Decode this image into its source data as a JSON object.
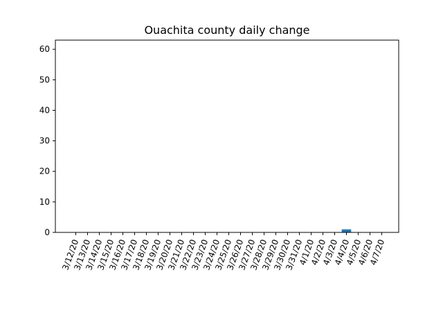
{
  "chart_data": {
    "type": "bar",
    "title": "Ouachita county daily change",
    "xlabel": "",
    "ylabel": "",
    "categories": [
      "3/12/20",
      "3/13/20",
      "3/14/20",
      "3/15/20",
      "3/16/20",
      "3/17/20",
      "3/18/20",
      "3/19/20",
      "3/20/20",
      "3/21/20",
      "3/22/20",
      "3/23/20",
      "3/24/20",
      "3/25/20",
      "3/26/20",
      "3/27/20",
      "3/28/20",
      "3/29/20",
      "3/30/20",
      "3/31/20",
      "4/1/20",
      "4/2/20",
      "4/3/20",
      "4/4/20",
      "4/5/20",
      "4/6/20",
      "4/7/20"
    ],
    "values": [
      0,
      0,
      0,
      0,
      0,
      0,
      0,
      0,
      0,
      0,
      0,
      0,
      0,
      0,
      0,
      0,
      0,
      0,
      0,
      0,
      0,
      0,
      0,
      1,
      0,
      0,
      0
    ],
    "ylim": [
      0,
      63
    ],
    "yticks": [
      0,
      10,
      20,
      30,
      40,
      50,
      60
    ],
    "bar_color": "#1f77b4",
    "grid": false,
    "legend": "none"
  }
}
